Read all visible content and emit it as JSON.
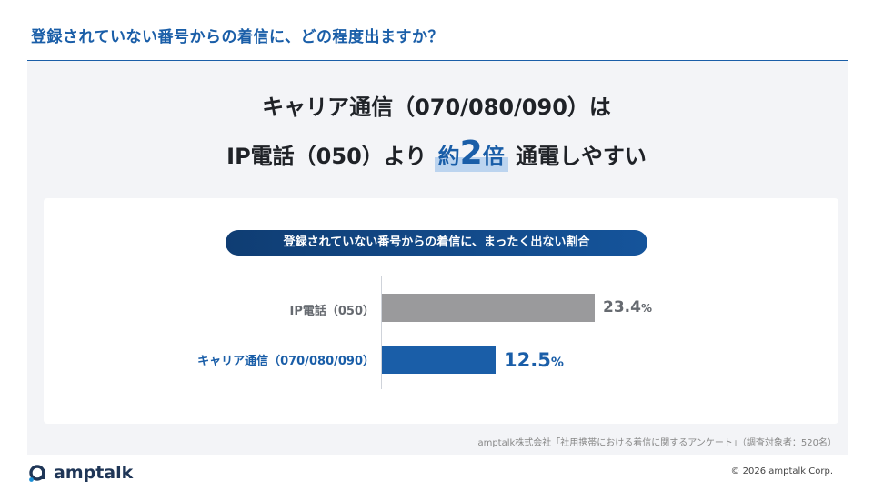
{
  "header": {
    "title": "登録されていない番号からの着信に、どの程度出ますか？"
  },
  "headline": {
    "line1": "キャリア通信（070/080/090）は",
    "line2_pre": "IP電話（050）より",
    "highlight_prefix": "約",
    "highlight_number": "2",
    "highlight_suffix": "倍",
    "line2_post": "通電しやすい"
  },
  "chart_data": {
    "type": "bar",
    "orientation": "horizontal",
    "title": "登録されていない番号からの着信に、まったく出ない割合",
    "categories": [
      "IP電話（050）",
      "キャリア通信（070/080/090）"
    ],
    "values": [
      23.4,
      12.5
    ],
    "value_labels": [
      "23.4",
      "12.5"
    ],
    "unit": "%",
    "xlim": [
      0,
      40
    ],
    "colors": [
      "#9a9a9c",
      "#1a5ea8"
    ],
    "grid": false,
    "legend": "none"
  },
  "source": "amptalk株式会社「社用携帯における着信に関するアンケート」（調査対象者：520名）",
  "footer": {
    "brand": "amptalk",
    "copyright": "© 2026 amptalk Corp.",
    "logo_icon": "amptalk-logo-icon"
  }
}
